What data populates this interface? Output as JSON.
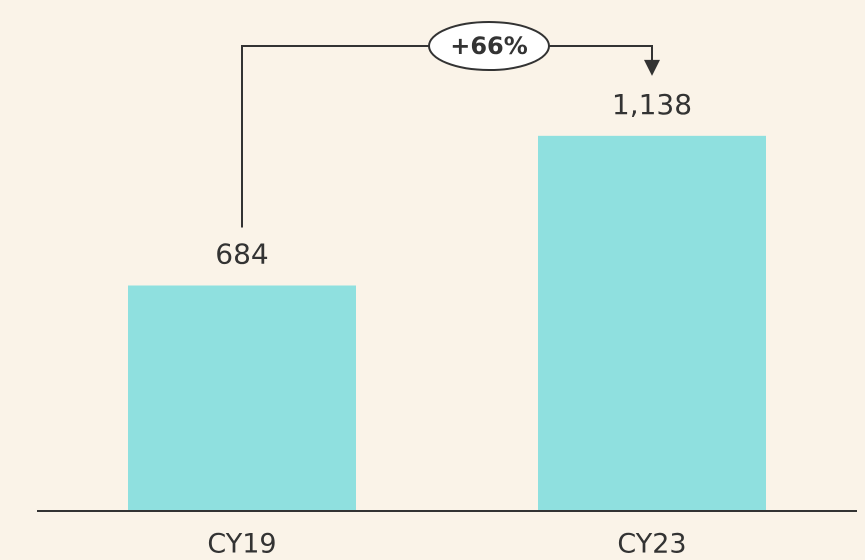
{
  "chart_data": {
    "type": "bar",
    "categories": [
      "CY19",
      "CY23"
    ],
    "values": [
      684,
      1138
    ],
    "value_labels": [
      "684",
      "1,138"
    ],
    "color": "#8fe0df",
    "ylim": [
      0,
      1550
    ],
    "annotation": "+66%"
  }
}
